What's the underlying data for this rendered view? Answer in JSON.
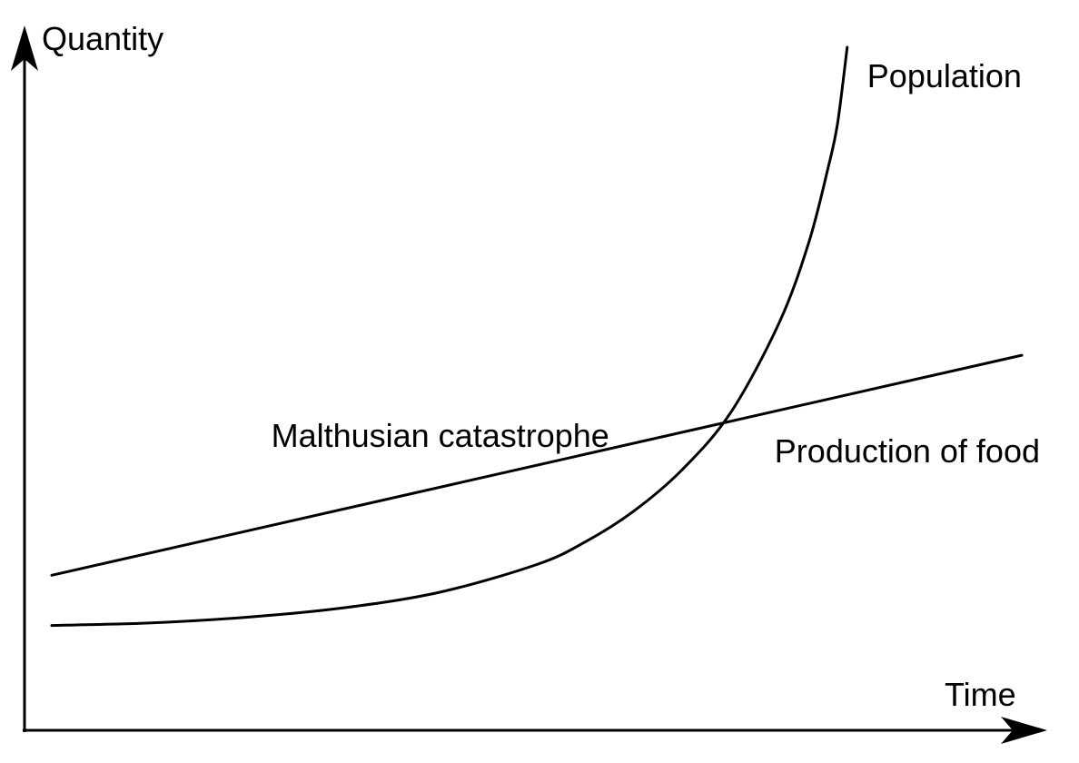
{
  "chart_data": {
    "type": "line",
    "xlabel": "Time",
    "ylabel": "Quantity",
    "xlim": [
      0,
      10
    ],
    "ylim": [
      0,
      10
    ],
    "grid": false,
    "x_ticks": "none",
    "y_ticks": "none",
    "series": [
      {
        "name": "Population",
        "curve": "exponential",
        "x": [
          0,
          1,
          2,
          3,
          4,
          5,
          5.5,
          6,
          6.5,
          7,
          7.5,
          7.8,
          8.0,
          8.1,
          8.2
        ],
        "values": [
          0.8,
          0.84,
          0.93,
          1.08,
          1.33,
          1.77,
          2.13,
          2.62,
          3.28,
          4.19,
          5.62,
          6.87,
          8.06,
          8.78,
          10.0
        ]
      },
      {
        "name": "Production of food",
        "curve": "linear",
        "x": [
          0,
          10
        ],
        "values": [
          1.6,
          5.1
        ]
      }
    ],
    "annotations": [
      {
        "text": "Malthusian catastrophe",
        "x": 5.7,
        "y": 3.5
      }
    ]
  }
}
